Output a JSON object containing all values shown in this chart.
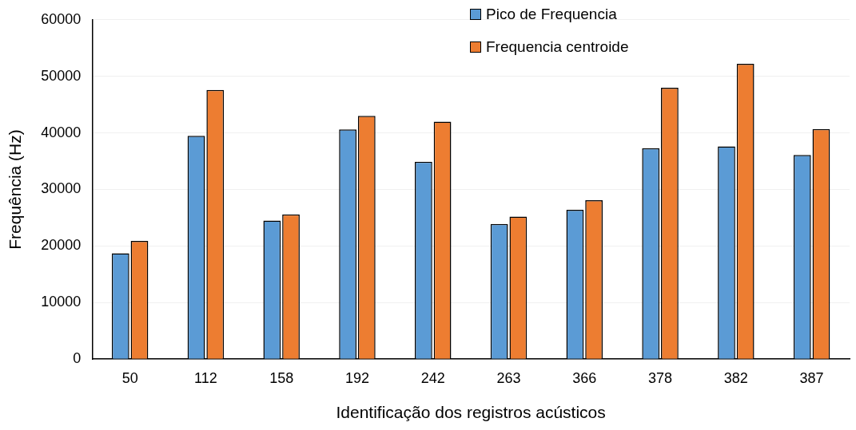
{
  "chart_data": {
    "type": "bar",
    "xlabel": "Identificação dos registros acústicos",
    "ylabel": "Frequência (Hz)",
    "categories": [
      "50",
      "112",
      "158",
      "192",
      "242",
      "263",
      "366",
      "378",
      "382",
      "387"
    ],
    "series": [
      {
        "name": "Pico de Frequencia",
        "color": "#5b9bd5",
        "values": [
          18700,
          39500,
          24500,
          40600,
          34900,
          23900,
          26400,
          37300,
          37600,
          36100
        ]
      },
      {
        "name": "Frequencia centroide",
        "color": "#ed7d31",
        "values": [
          20900,
          47600,
          25600,
          43000,
          42000,
          25200,
          28100,
          48000,
          52200,
          40700
        ]
      }
    ],
    "ylim": [
      0,
      60000
    ],
    "yticks": [
      0,
      10000,
      20000,
      30000,
      40000,
      50000,
      60000
    ],
    "grid": "y",
    "legend": "top right"
  }
}
